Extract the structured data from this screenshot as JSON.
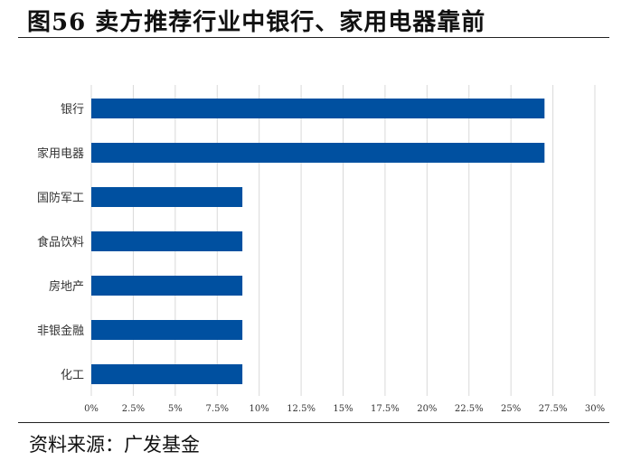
{
  "header": {
    "title": "图56  卖方推荐行业中银行、家用电器靠前"
  },
  "footer": {
    "source": "资料来源：广发基金"
  },
  "colors": {
    "bar": "#0050a0",
    "grid": "#d9d9d9"
  },
  "chart_data": {
    "type": "bar",
    "orientation": "horizontal",
    "categories": [
      "银行",
      "家用电器",
      "国防军工",
      "食品饮料",
      "房地产",
      "非银金融",
      "化工"
    ],
    "values": [
      27.0,
      27.0,
      9.0,
      9.0,
      9.0,
      9.0,
      9.0
    ],
    "xlim": [
      0,
      30
    ],
    "xticks": [
      "0%",
      "2.5%",
      "5%",
      "7.5%",
      "10%",
      "12.5%",
      "15%",
      "17.5%",
      "20%",
      "22.5%",
      "25%",
      "27.5%",
      "30%"
    ],
    "grid": true,
    "title": "",
    "xlabel": "",
    "ylabel": ""
  }
}
